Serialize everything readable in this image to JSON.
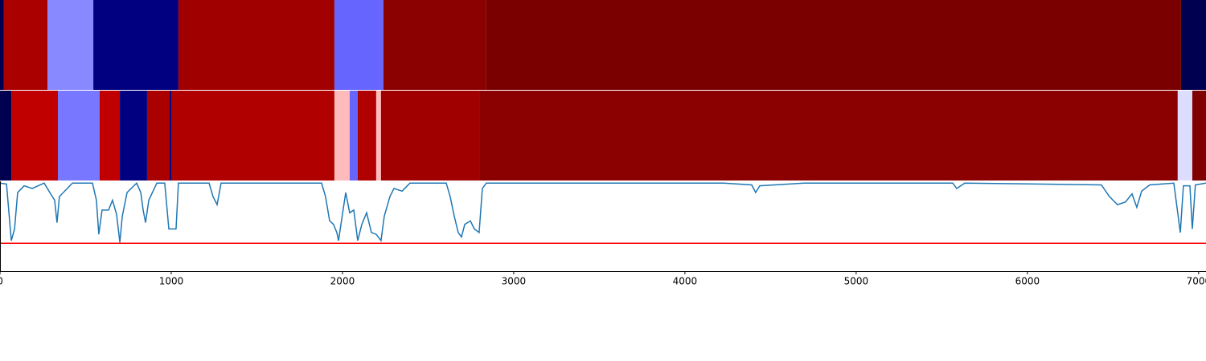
{
  "chart_data": [
    {
      "type": "strip",
      "xlim": [
        0,
        7043
      ],
      "starts": [
        0,
        23,
        277,
        545,
        1042,
        1953,
        2239,
        2840,
        6897
      ],
      "ends": [
        23,
        277,
        545,
        1042,
        1953,
        2239,
        2840,
        6897,
        7043
      ],
      "colors": [
        "#000050",
        "#aa0000",
        "#8888ff",
        "#000080",
        "#a00000",
        "#6666ff",
        "#8b0000",
        "#7a0000",
        "#000050"
      ]
    },
    {
      "type": "strip",
      "xlim": [
        0,
        7043
      ],
      "starts": [
        0,
        66,
        338,
        582,
        700,
        859,
        991,
        1000,
        1014,
        1953,
        2042,
        2089,
        2099,
        2197,
        2225,
        2803,
        6878,
        6963
      ],
      "ends": [
        66,
        338,
        582,
        700,
        859,
        991,
        1000,
        1014,
        1953,
        2042,
        2089,
        2099,
        2197,
        2225,
        2803,
        6878,
        6963,
        7043
      ],
      "colors": [
        "#000050",
        "#c00000",
        "#7777ff",
        "#c00000",
        "#000080",
        "#aa0000",
        "#000080",
        "#aa0000",
        "#b00000",
        "#ffbbbb",
        "#6666ff",
        "#aa0000",
        "#b00000",
        "#ffbbbb",
        "#a00000",
        "#8b0000",
        "#ddddff",
        "#800000"
      ]
    },
    {
      "type": "line",
      "xlim": [
        0,
        7043
      ],
      "ylim": [
        0,
        1
      ],
      "xticks": [
        0,
        1000,
        2000,
        3000,
        4000,
        5000,
        6000,
        7000
      ],
      "threshold": 0.31,
      "threshold_color": "#ff0000",
      "series": [
        {
          "color": "#1f77b4",
          "x": [
            0,
            38,
            66,
            85,
            103,
            141,
            188,
            258,
            291,
            319,
            333,
            347,
            423,
            540,
            563,
            577,
            596,
            634,
            657,
            681,
            700,
            714,
            742,
            798,
            822,
            836,
            850,
            869,
            916,
            962,
            986,
            1028,
            1042,
            1221,
            1244,
            1268,
            1291,
            1878,
            1901,
            1925,
            1948,
            1967,
            1977,
            1991,
            2019,
            2042,
            2066,
            2089,
            2113,
            2141,
            2169,
            2197,
            2225,
            2244,
            2277,
            2301,
            2348,
            2394,
            2606,
            2629,
            2653,
            2676,
            2695,
            2714,
            2747,
            2770,
            2798,
            2817,
            2840,
            4226,
            4390,
            4413,
            4437,
            4695,
            5564,
            5587,
            5634,
            6432,
            6479,
            6526,
            6573,
            6611,
            6639,
            6667,
            6714,
            6855,
            6893,
            6911,
            6949,
            6963,
            6981,
            7043
          ],
          "values": [
            0.98,
            0.97,
            0.34,
            0.47,
            0.875,
            0.95,
            0.92,
            0.98,
            0.875,
            0.79,
            0.54,
            0.83,
            0.98,
            0.98,
            0.79,
            0.41,
            0.68,
            0.68,
            0.79,
            0.63,
            0.32,
            0.61,
            0.875,
            0.98,
            0.875,
            0.68,
            0.54,
            0.79,
            0.98,
            0.98,
            0.47,
            0.47,
            0.98,
            0.98,
            0.83,
            0.74,
            0.98,
            0.98,
            0.83,
            0.56,
            0.52,
            0.43,
            0.34,
            0.52,
            0.875,
            0.65,
            0.68,
            0.34,
            0.52,
            0.65,
            0.43,
            0.41,
            0.34,
            0.61,
            0.83,
            0.92,
            0.89,
            0.98,
            0.98,
            0.83,
            0.61,
            0.43,
            0.38,
            0.52,
            0.56,
            0.47,
            0.43,
            0.92,
            0.98,
            0.98,
            0.96,
            0.875,
            0.95,
            0.98,
            0.98,
            0.92,
            0.98,
            0.96,
            0.83,
            0.74,
            0.77,
            0.86,
            0.71,
            0.89,
            0.96,
            0.98,
            0.43,
            0.95,
            0.95,
            0.47,
            0.96,
            0.98
          ]
        }
      ]
    }
  ]
}
